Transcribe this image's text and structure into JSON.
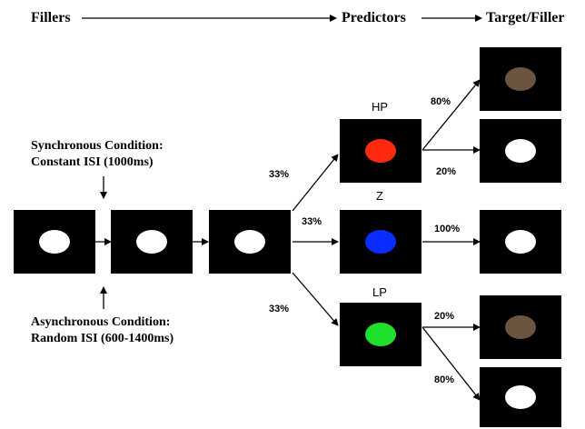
{
  "headers": {
    "fillers": "Fillers",
    "predictors": "Predictors",
    "target_filler": "Target/Filler"
  },
  "conditions": {
    "sync_line1": "Synchronous Condition:",
    "sync_line2": "Constant ISI (1000ms)",
    "async_line1": "Asynchronous Condition:",
    "async_line2": "Random ISI (600-1400ms)"
  },
  "predictor_labels": {
    "hp": "HP",
    "z": "Z",
    "lp": "LP"
  },
  "percentages": {
    "branch_hp": "33%",
    "branch_z": "33%",
    "branch_lp": "33%",
    "hp_to_brown": "80%",
    "hp_to_white": "20%",
    "z_to_white": "100%",
    "lp_to_brown": "20%",
    "lp_to_white": "80%"
  },
  "colors": {
    "white_stimulus": "#ffffff",
    "red_stimulus": "#ff2a0e",
    "blue_stimulus": "#0a2cff",
    "green_stimulus": "#1fe02a",
    "brown_stimulus": "#6b5440",
    "box_background": "#000000"
  }
}
